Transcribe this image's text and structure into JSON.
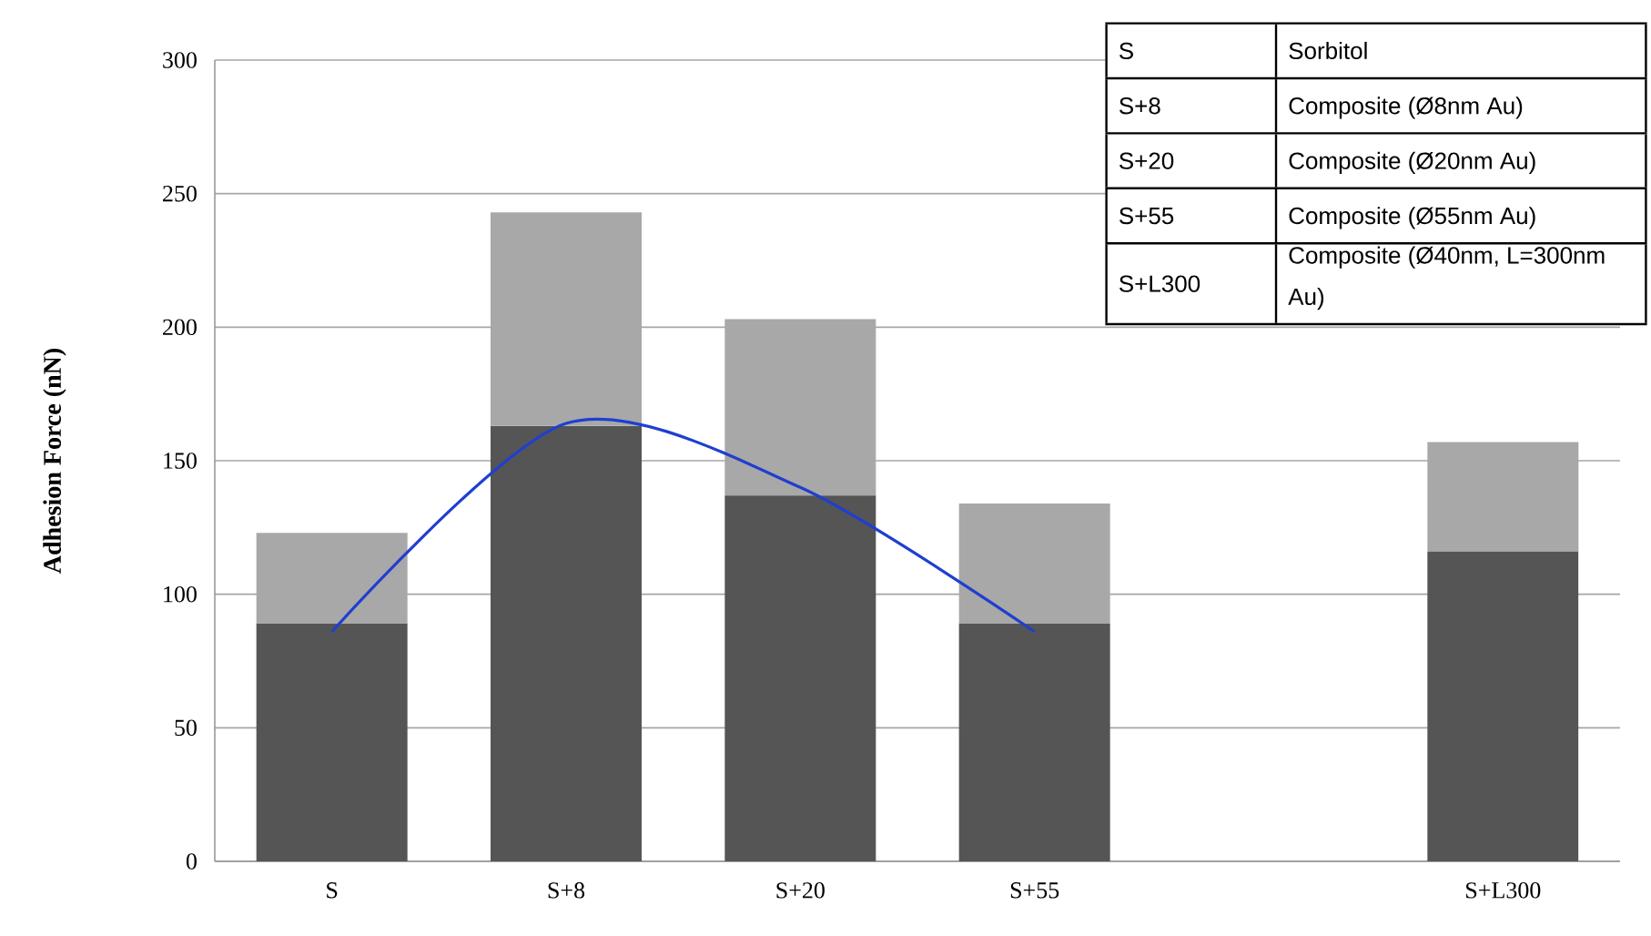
{
  "chart_data": {
    "type": "bar",
    "stacked": true,
    "ylabel": "Adhesion Force (nN)",
    "categories": [
      "S",
      "S+8",
      "S+20",
      "S+55",
      null,
      "S+L300"
    ],
    "series": [
      {
        "color": "#555555",
        "values": [
          89,
          163,
          137,
          89,
          null,
          116
        ]
      },
      {
        "color": "#a8a8a8",
        "values": [
          34,
          80,
          66,
          45,
          null,
          41
        ]
      },
      {
        "type": "line",
        "color": "#1f3fd0",
        "values": [
          86,
          164,
          140,
          86,
          null,
          null
        ]
      }
    ],
    "ylim": [
      0,
      300
    ],
    "yticks": [
      0,
      50,
      100,
      150,
      200,
      250,
      300
    ],
    "grid": "y",
    "annotations": [
      "S",
      "Sorbitol",
      "S+8",
      "Composite (Ø8nm Au)",
      "S+20",
      "Composite (Ø20nm Au)",
      "S+55",
      "Composite (Ø55nm Au)",
      "S+L300",
      "Composite (Ø40nm, L=300nm Au)"
    ]
  }
}
